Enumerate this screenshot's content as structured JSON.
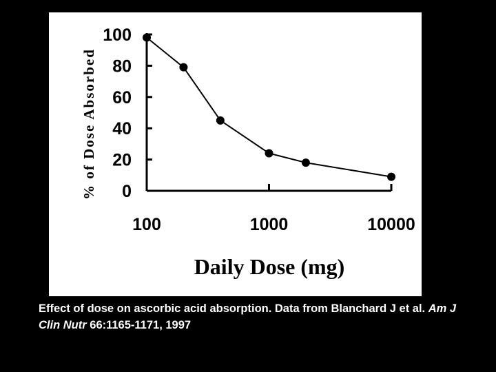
{
  "chart_data": {
    "type": "line",
    "x_scale": "log",
    "x": [
      100,
      200,
      400,
      1000,
      2000,
      10000
    ],
    "series": [
      {
        "values": [
          98,
          79,
          45,
          24,
          18,
          9
        ]
      }
    ],
    "xlim": [
      100,
      10000
    ],
    "ylim": [
      0,
      100
    ],
    "xticks": [
      "100",
      "1000",
      "10000"
    ],
    "yticks": [
      "0",
      "20",
      "40",
      "60",
      "80",
      "100"
    ],
    "xlabel": "Daily Dose (mg)",
    "ylabel": "% of Dose Absorbed",
    "grid": false,
    "legend": "none",
    "colors": {
      "line": "#000000",
      "marker": "#000000",
      "panel": "#ffffff",
      "background": "#000000"
    }
  },
  "caption": {
    "text": "Effect of dose on ascorbic acid absorption. Data from Blanchard J et al.",
    "journal": "Am J Clin Nutr",
    "citation": "66:1165-1171, 1997"
  }
}
